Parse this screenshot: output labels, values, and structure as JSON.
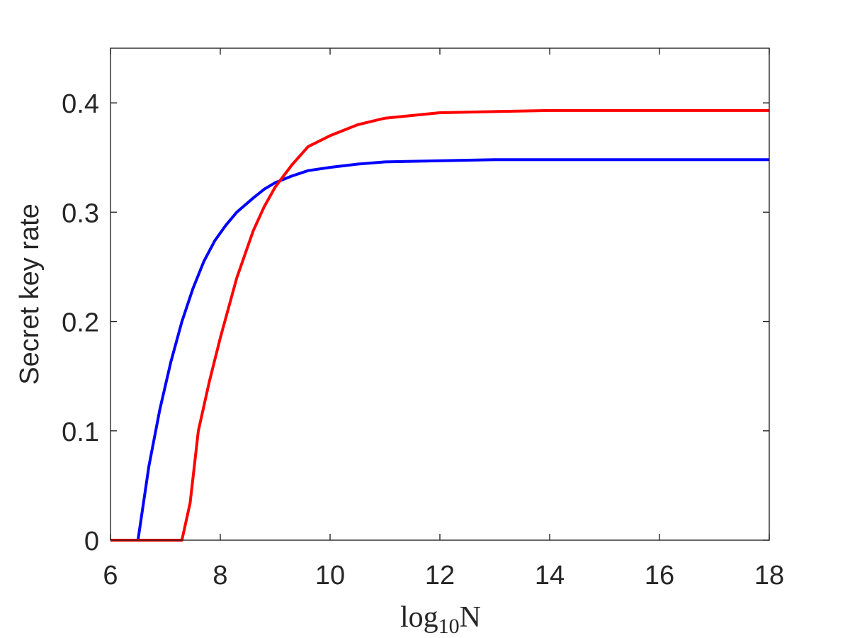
{
  "chart_data": {
    "type": "line",
    "title": "",
    "xlabel": {
      "base": "log",
      "subscript": "10",
      "variable": "N"
    },
    "ylabel": "Secret key rate",
    "xlim": [
      6,
      18
    ],
    "ylim": [
      0,
      0.45
    ],
    "x_ticks": [
      6,
      8,
      10,
      12,
      14,
      16,
      18
    ],
    "y_ticks": [
      0,
      0.1,
      0.2,
      0.3,
      0.4
    ],
    "x_tick_labels": [
      "6",
      "8",
      "10",
      "12",
      "14",
      "16",
      "18"
    ],
    "y_tick_labels": [
      "0",
      "0.1",
      "0.2",
      "0.3",
      "0.4"
    ],
    "grid": false,
    "legend": "none",
    "series": [
      {
        "color": "#0000ff",
        "points": [
          [
            6.0,
            0.0
          ],
          [
            6.5,
            0.0
          ],
          [
            6.7,
            0.068
          ],
          [
            6.9,
            0.12
          ],
          [
            7.1,
            0.163
          ],
          [
            7.3,
            0.2
          ],
          [
            7.5,
            0.23
          ],
          [
            7.7,
            0.255
          ],
          [
            7.9,
            0.274
          ],
          [
            8.1,
            0.288
          ],
          [
            8.3,
            0.3
          ],
          [
            8.6,
            0.313
          ],
          [
            8.8,
            0.321
          ],
          [
            9.0,
            0.327
          ],
          [
            9.3,
            0.333
          ],
          [
            9.6,
            0.338
          ],
          [
            10.0,
            0.341
          ],
          [
            10.5,
            0.344
          ],
          [
            11.0,
            0.346
          ],
          [
            12.0,
            0.347
          ],
          [
            13.0,
            0.348
          ],
          [
            14.0,
            0.348
          ],
          [
            16.0,
            0.348
          ],
          [
            18.0,
            0.348
          ]
        ]
      },
      {
        "color": "#ff0000",
        "points": [
          [
            6.0,
            0.0
          ],
          [
            7.3,
            0.0
          ],
          [
            7.45,
            0.034
          ],
          [
            7.6,
            0.1
          ],
          [
            7.8,
            0.145
          ],
          [
            8.0,
            0.185
          ],
          [
            8.3,
            0.24
          ],
          [
            8.6,
            0.283
          ],
          [
            8.8,
            0.305
          ],
          [
            9.0,
            0.323
          ],
          [
            9.3,
            0.343
          ],
          [
            9.6,
            0.36
          ],
          [
            10.0,
            0.37
          ],
          [
            10.5,
            0.38
          ],
          [
            11.0,
            0.386
          ],
          [
            12.0,
            0.391
          ],
          [
            13.0,
            0.392
          ],
          [
            14.0,
            0.393
          ],
          [
            16.0,
            0.393
          ],
          [
            18.0,
            0.393
          ]
        ]
      }
    ]
  }
}
